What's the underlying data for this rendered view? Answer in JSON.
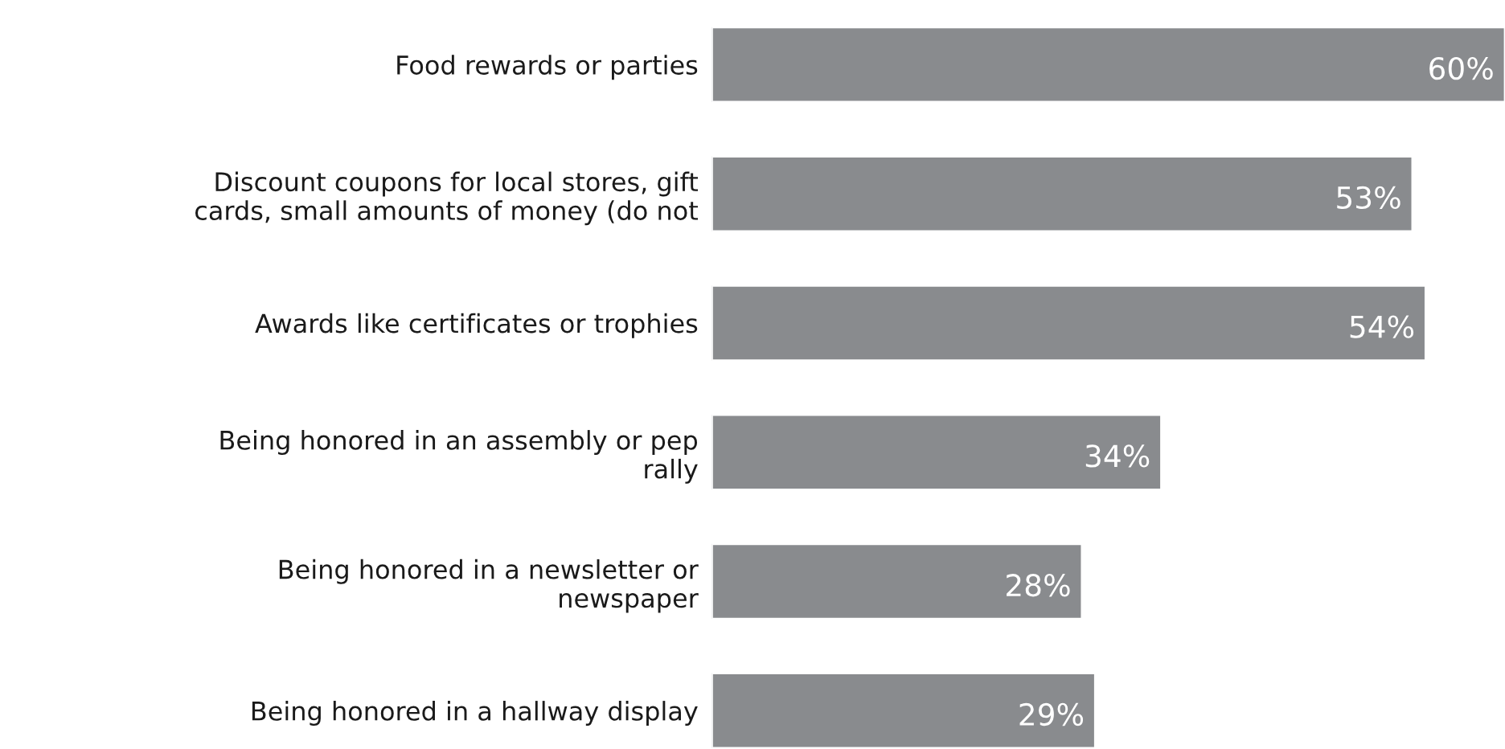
{
  "chart_data": {
    "type": "bar",
    "orientation": "horizontal",
    "categories": [
      "Food rewards or parties",
      "Discount coupons for local stores, gift\ncards, small amounts of money (do not",
      "Awards like certificates or trophies",
      "Being honored in an assembly or pep\nrally",
      "Being honored in a newsletter or\nnewspaper",
      "Being honored in a hallway display"
    ],
    "values": [
      60,
      53,
      54,
      34,
      28,
      29
    ],
    "value_labels": [
      "60%",
      "53%",
      "54%",
      "34%",
      "28%",
      "29%"
    ],
    "color": "#898b8e",
    "grid": false
  }
}
